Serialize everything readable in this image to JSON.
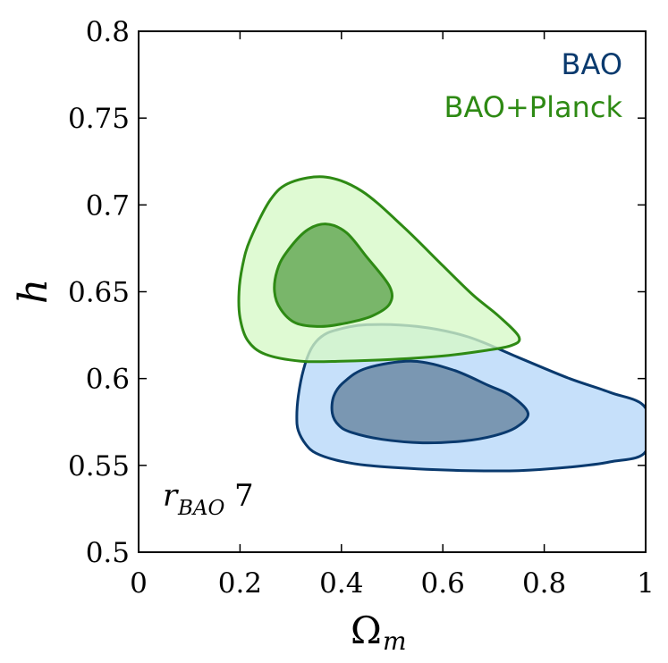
{
  "chart_data": {
    "type": "contour",
    "x_axis": {
      "label_main": "Ω",
      "label_sub": "m",
      "range": [
        0,
        1
      ],
      "ticks": [
        0,
        0.2,
        0.4,
        0.6,
        0.8,
        1
      ],
      "tick_labels": [
        "0",
        "0.2",
        "0.4",
        "0.6",
        "0.8",
        "1"
      ]
    },
    "y_axis": {
      "label": "h",
      "range": [
        0.5,
        0.8
      ],
      "ticks": [
        0.5,
        0.55,
        0.6,
        0.65,
        0.7,
        0.75,
        0.8
      ],
      "tick_labels": [
        "0.5",
        "0.55",
        "0.6",
        "0.65",
        "0.7",
        "0.75",
        "0.8"
      ]
    },
    "legend": {
      "placement": "top-right",
      "entries": [
        {
          "label": "BAO",
          "color": "#0a3a6e"
        },
        {
          "label": "BAO+Planck",
          "color": "#2e8a14"
        }
      ]
    },
    "annotation": {
      "main": "r",
      "sub": "BAO",
      "suffix": "7"
    },
    "series": [
      {
        "name": "BAO",
        "line_color": "#0a3a6e",
        "outer_fill": "#c6e0fa",
        "inner_fill": "#7a97b2",
        "contours": {
          "outer": [
            [
              0.39,
              0.628
            ],
            [
              0.45,
              0.631
            ],
            [
              0.55,
              0.63
            ],
            [
              0.65,
              0.624
            ],
            [
              0.75,
              0.612
            ],
            [
              0.85,
              0.6
            ],
            [
              0.93,
              0.592
            ],
            [
              1.0,
              0.583
            ],
            [
              1.0,
              0.558
            ],
            [
              0.93,
              0.552
            ],
            [
              0.85,
              0.549
            ],
            [
              0.75,
              0.547
            ],
            [
              0.65,
              0.547
            ],
            [
              0.55,
              0.548
            ],
            [
              0.45,
              0.55
            ],
            [
              0.39,
              0.553
            ],
            [
              0.35,
              0.557
            ],
            [
              0.33,
              0.562
            ],
            [
              0.315,
              0.57
            ],
            [
              0.312,
              0.578
            ],
            [
              0.315,
              0.59
            ],
            [
              0.325,
              0.605
            ],
            [
              0.34,
              0.617
            ],
            [
              0.36,
              0.624
            ]
          ],
          "inner": [
            [
              0.45,
              0.606
            ],
            [
              0.54,
              0.61
            ],
            [
              0.62,
              0.605
            ],
            [
              0.69,
              0.596
            ],
            [
              0.735,
              0.59
            ],
            [
              0.768,
              0.58
            ],
            [
              0.745,
              0.572
            ],
            [
              0.7,
              0.567
            ],
            [
              0.64,
              0.564
            ],
            [
              0.56,
              0.563
            ],
            [
              0.48,
              0.565
            ],
            [
              0.42,
              0.569
            ],
            [
              0.395,
              0.573
            ],
            [
              0.382,
              0.58
            ],
            [
              0.385,
              0.59
            ],
            [
              0.405,
              0.598
            ]
          ]
        }
      },
      {
        "name": "BAO+Planck",
        "line_color": "#2e8a14",
        "outer_fill": "#d6f8c6",
        "inner_fill": "#79b66a",
        "contours": {
          "outer": [
            [
              0.22,
              0.68
            ],
            [
              0.26,
              0.703
            ],
            [
              0.3,
              0.713
            ],
            [
              0.37,
              0.716
            ],
            [
              0.44,
              0.708
            ],
            [
              0.52,
              0.688
            ],
            [
              0.6,
              0.665
            ],
            [
              0.66,
              0.648
            ],
            [
              0.71,
              0.636
            ],
            [
              0.75,
              0.624
            ],
            [
              0.735,
              0.619
            ],
            [
              0.68,
              0.616
            ],
            [
              0.6,
              0.613
            ],
            [
              0.5,
              0.611
            ],
            [
              0.4,
              0.61
            ],
            [
              0.32,
              0.61
            ],
            [
              0.25,
              0.614
            ],
            [
              0.215,
              0.622
            ],
            [
              0.2,
              0.635
            ],
            [
              0.198,
              0.65
            ],
            [
              0.205,
              0.665
            ]
          ],
          "inner": [
            [
              0.29,
              0.672
            ],
            [
              0.33,
              0.685
            ],
            [
              0.37,
              0.689
            ],
            [
              0.41,
              0.684
            ],
            [
              0.45,
              0.67
            ],
            [
              0.495,
              0.653
            ],
            [
              0.495,
              0.643
            ],
            [
              0.46,
              0.636
            ],
            [
              0.41,
              0.632
            ],
            [
              0.36,
              0.63
            ],
            [
              0.31,
              0.632
            ],
            [
              0.28,
              0.64
            ],
            [
              0.268,
              0.65
            ],
            [
              0.273,
              0.662
            ]
          ]
        }
      }
    ]
  }
}
